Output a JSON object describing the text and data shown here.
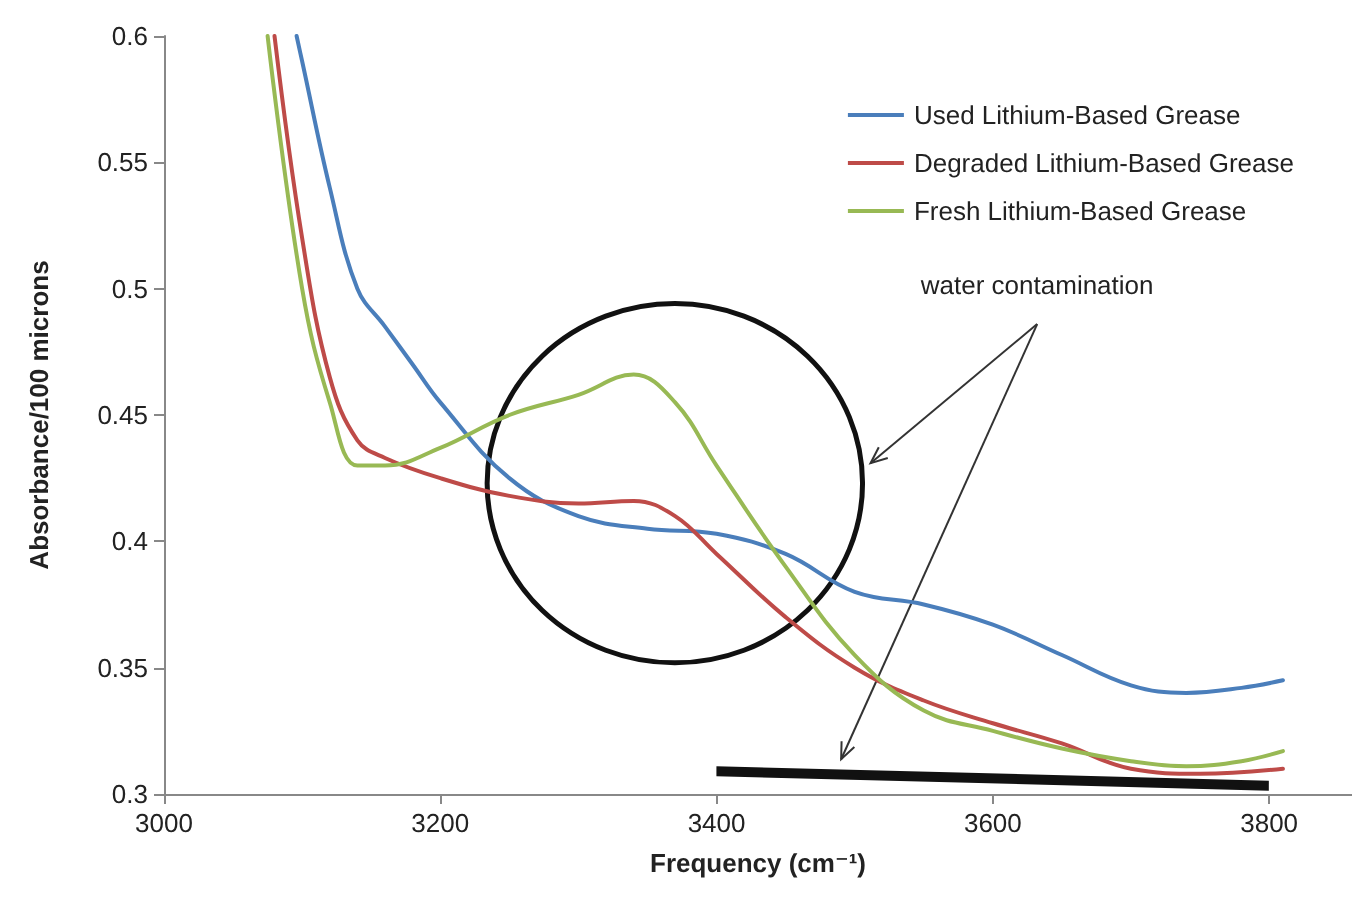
{
  "chart_data": {
    "type": "line",
    "xlabel": "Frequency (cm⁻¹)",
    "ylabel": "Absorbance/100 microns",
    "xlim": [
      3000,
      3860
    ],
    "xticks": [
      3000,
      3200,
      3400,
      3600,
      3800
    ],
    "ylim": [
      0.3,
      0.6
    ],
    "yticks": [
      0.3,
      0.35,
      0.4,
      0.45,
      0.5,
      0.55,
      0.6
    ],
    "grid": false,
    "legend": "top right",
    "marker": "none",
    "line_style": "solid",
    "annotations": [
      "water contamination"
    ],
    "series": [
      {
        "name": "Used Lithium-Based Grease",
        "color": "#4a7ebb",
        "x": [
          3096,
          3100,
          3120,
          3140,
          3160,
          3180,
          3200,
          3250,
          3300,
          3350,
          3400,
          3450,
          3500,
          3550,
          3600,
          3650,
          3700,
          3740,
          3780,
          3810
        ],
        "values": [
          0.6,
          0.59,
          0.54,
          0.5,
          0.485,
          0.47,
          0.455,
          0.425,
          0.41,
          0.405,
          0.403,
          0.395,
          0.38,
          0.375,
          0.367,
          0.355,
          0.343,
          0.34,
          0.342,
          0.345
        ]
      },
      {
        "name": "Degraded Lithium-Based Grease",
        "color": "#be4b48",
        "x": [
          3080,
          3100,
          3120,
          3140,
          3160,
          3200,
          3250,
          3300,
          3340,
          3370,
          3400,
          3450,
          3500,
          3550,
          3600,
          3650,
          3700,
          3750,
          3810
        ],
        "values": [
          0.6,
          0.52,
          0.465,
          0.44,
          0.433,
          0.425,
          0.418,
          0.415,
          0.416,
          0.41,
          0.395,
          0.37,
          0.35,
          0.337,
          0.328,
          0.32,
          0.31,
          0.308,
          0.31
        ]
      },
      {
        "name": "Fresh Lithium-Based Grease",
        "color": "#98b954",
        "x": [
          3075,
          3100,
          3120,
          3140,
          3160,
          3200,
          3250,
          3300,
          3340,
          3370,
          3400,
          3450,
          3500,
          3550,
          3600,
          3650,
          3700,
          3740,
          3780,
          3810
        ],
        "values": [
          0.6,
          0.5,
          0.455,
          0.43,
          0.43,
          0.437,
          0.45,
          0.458,
          0.466,
          0.455,
          0.43,
          0.39,
          0.355,
          0.333,
          0.325,
          0.318,
          0.313,
          0.311,
          0.313,
          0.317
        ]
      }
    ]
  }
}
